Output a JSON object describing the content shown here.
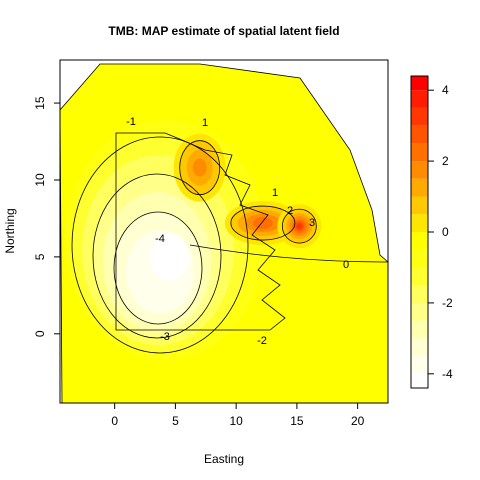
{
  "chart_data": {
    "type": "heatmap",
    "subtype": "filled-contour",
    "title": "TMB: MAP estimate of spatial latent field",
    "xlabel": "Easting",
    "ylabel": "Northing",
    "xlim": [
      -4.5,
      22.5
    ],
    "ylim": [
      -4.5,
      17.8
    ],
    "xticks": [
      "0",
      "5",
      "10",
      "15",
      "20"
    ],
    "yticks": [
      "0",
      "5",
      "10",
      "15"
    ],
    "colorbar": {
      "range": [
        -4.4,
        4.4
      ],
      "ticks": [
        "-4",
        "-2",
        "0",
        "2",
        "4"
      ],
      "levels": [
        -4.4,
        -4,
        -3.5,
        -3,
        -2.5,
        -2,
        -1.5,
        -1,
        -0.5,
        0,
        0.5,
        1,
        1.5,
        2,
        2.5,
        3,
        3.5,
        4,
        4.4
      ],
      "colors": [
        "#FFFFFF",
        "#FFFFEB",
        "#FFFFD1",
        "#FFFFB0",
        "#FFFF8A",
        "#FFFF5E",
        "#FFFF30",
        "#FFFF12",
        "#FFFF00",
        "#FFE600",
        "#FFC800",
        "#FFAA00",
        "#FF8C00",
        "#FF7000",
        "#FF5500",
        "#FF3800",
        "#FF1C00",
        "#FF0000"
      ]
    },
    "contour_labels": [
      "-1",
      "-4",
      "-3",
      "-2",
      "0",
      "1",
      "1",
      "2",
      "3"
    ],
    "features": [
      {
        "kind": "low",
        "center": [
          4.5,
          5.0
        ],
        "value": -4.4
      },
      {
        "kind": "high",
        "center": [
          7.0,
          10.8
        ],
        "value": 1.8
      },
      {
        "kind": "high",
        "center": [
          12.2,
          7.2
        ],
        "value": 2.4
      },
      {
        "kind": "high",
        "center": [
          15.2,
          7.0
        ],
        "value": 3.2
      }
    ],
    "grid": false,
    "legend": "right"
  }
}
